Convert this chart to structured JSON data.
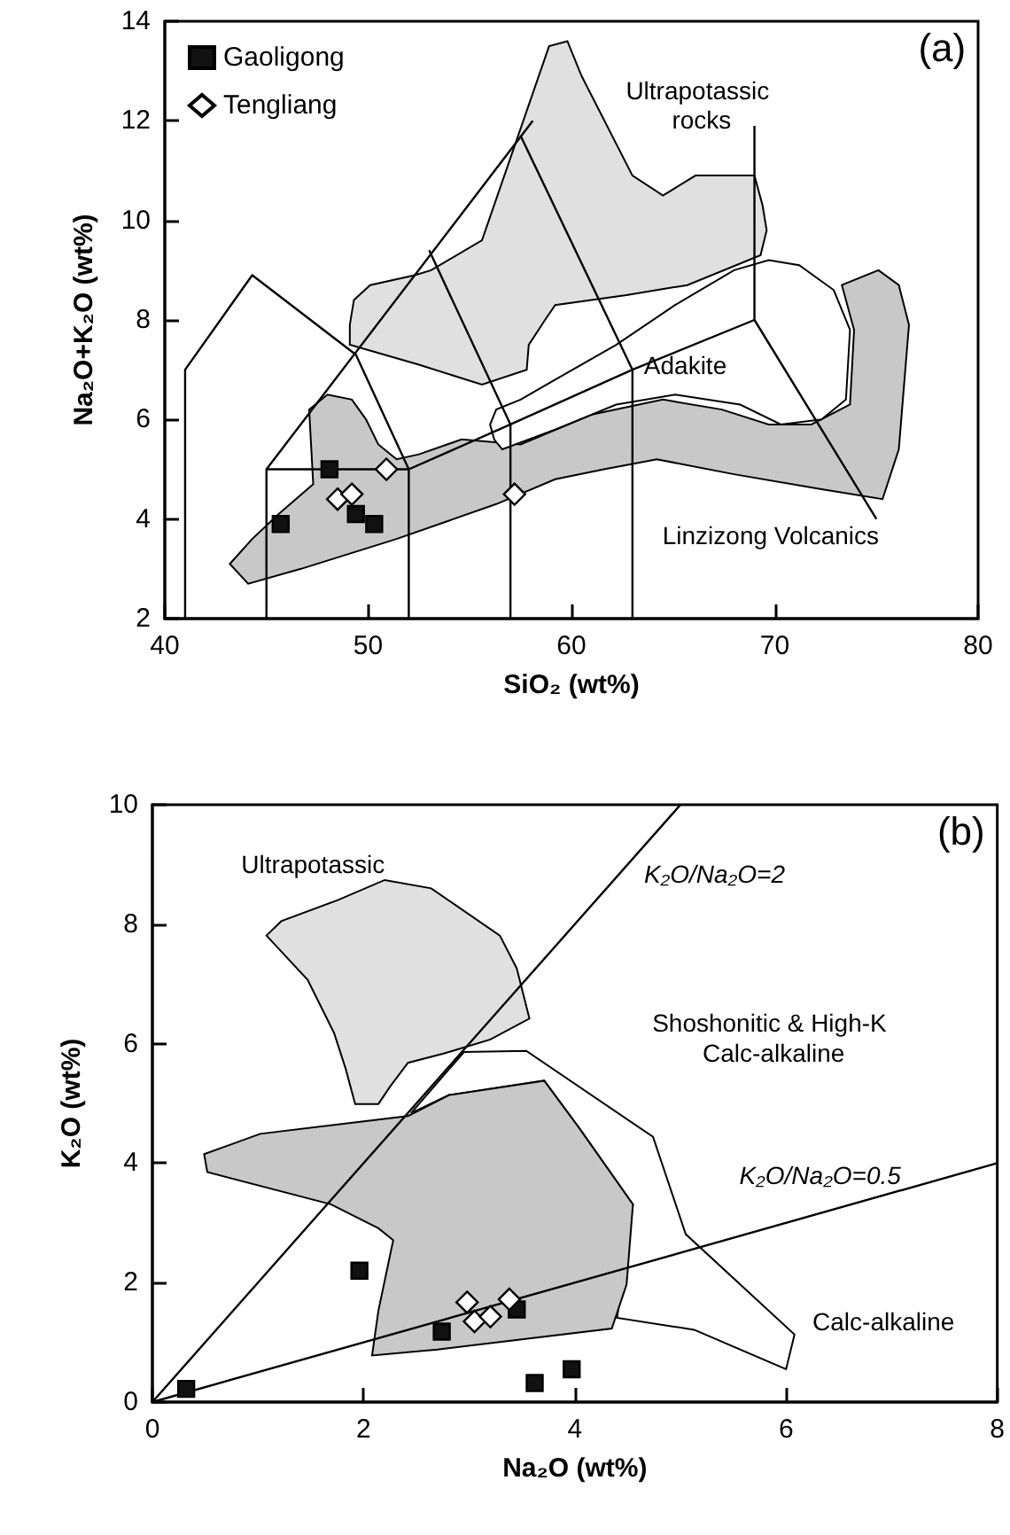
{
  "chart_data": [
    {
      "type": "scatter",
      "xlabel": "SiO₂ (wt%)",
      "ylabel": "Na₂O+K₂O (wt%)",
      "xlim": [
        40,
        80
      ],
      "xticks": [
        40,
        50,
        60,
        70,
        80
      ],
      "ylim": [
        2,
        14
      ],
      "yticks": [
        2,
        4,
        6,
        8,
        10,
        12,
        14
      ],
      "legend": "top left",
      "annotations": [
        "(a)",
        "Ultrapotassic",
        "rocks",
        "Adakite",
        "Linzizong Volcanics"
      ],
      "series": [
        {
          "type": "area",
          "color": "#c8c8c8",
          "x": [
            43.2,
            44.3,
            45.6,
            47.3,
            47.1,
            48.0,
            49.2,
            49.9,
            50.5,
            51.4,
            52.5,
            54.6,
            57.5,
            61.0,
            64.5,
            67.4,
            69.7,
            71.8,
            73.7,
            73.9,
            73.3,
            75.1,
            76.1,
            76.6,
            76.1,
            75.3,
            72.3,
            68.0,
            64.2,
            61.6,
            59.2,
            56.3,
            51.4,
            46.7,
            44.1
          ],
          "values": [
            3.1,
            3.6,
            4.1,
            4.7,
            6.2,
            6.5,
            6.4,
            6.0,
            5.5,
            5.2,
            5.3,
            5.6,
            5.5,
            6.1,
            6.4,
            6.2,
            5.9,
            5.9,
            6.3,
            7.8,
            8.7,
            9.0,
            8.7,
            7.9,
            5.4,
            4.4,
            4.6,
            4.9,
            5.2,
            5.0,
            4.8,
            4.3,
            3.6,
            3.0,
            2.7
          ]
        },
        {
          "type": "area",
          "color": "#e0e0e0",
          "x": [
            49.1,
            49.3,
            50.1,
            52.3,
            53.1,
            55.6,
            58.9,
            59.8,
            60.5,
            63.0,
            64.5,
            66.1,
            69.0,
            69.4,
            69.6,
            69.3,
            65.7,
            62.7,
            59.2,
            58.7,
            57.9,
            57.8,
            55.6,
            52.5,
            49.1
          ],
          "values": [
            7.9,
            8.4,
            8.7,
            8.9,
            9.0,
            9.6,
            13.5,
            13.6,
            12.9,
            10.9,
            10.5,
            10.9,
            10.9,
            10.3,
            9.8,
            9.3,
            8.7,
            8.5,
            8.3,
            8.0,
            7.5,
            7.0,
            6.7,
            7.1,
            7.5
          ]
        },
        {
          "type": "area",
          "color": "#ffffff",
          "x": [
            56.0,
            56.3,
            57.5,
            59.2,
            62.2,
            65.1,
            68.0,
            69.7,
            71.2,
            72.9,
            73.7,
            73.5,
            72.3,
            70.3,
            68.3,
            65.1,
            62.2,
            59.2,
            56.6,
            56.2
          ],
          "values": [
            5.9,
            6.2,
            6.4,
            6.8,
            7.5,
            8.3,
            9.0,
            9.2,
            9.1,
            8.6,
            7.8,
            6.4,
            6.0,
            5.9,
            6.3,
            6.5,
            6.3,
            5.8,
            5.4,
            5.6
          ]
        },
        {
          "type": "line",
          "color": "#000000",
          "x": [
            41,
            41,
            44.3,
            49.4,
            52,
            52
          ],
          "values": [
            2,
            7,
            8.9,
            7.3,
            5,
            2
          ]
        },
        {
          "type": "line",
          "color": "#000000",
          "x": [
            45,
            45,
            52,
            57,
            63,
            69
          ],
          "values": [
            2,
            5,
            5,
            5.9,
            7,
            8
          ]
        },
        {
          "type": "line",
          "color": "#000000",
          "x": [
            45,
            58.1
          ],
          "values": [
            5,
            12
          ]
        },
        {
          "type": "line",
          "color": "#000000",
          "x": [
            53,
            57,
            57
          ],
          "values": [
            9.4,
            5.9,
            2
          ]
        },
        {
          "type": "line",
          "color": "#000000",
          "x": [
            57.5,
            63,
            63
          ],
          "values": [
            11.7,
            7,
            2
          ]
        },
        {
          "type": "line",
          "color": "#000000",
          "x": [
            69,
            69,
            75
          ],
          "values": [
            11.9,
            8,
            4
          ]
        },
        {
          "name": "Gaoligong",
          "color": "#111111",
          "marker": "square",
          "x": [
            45.7,
            48.1,
            49.4,
            50.3
          ],
          "values": [
            3.9,
            5.0,
            4.1,
            3.9
          ]
        },
        {
          "name": "Tengliang",
          "color": "#ffffff",
          "marker": "diamond",
          "x": [
            50.9,
            48.5,
            49.2,
            57.2
          ],
          "values": [
            5.0,
            4.4,
            4.5,
            4.5
          ]
        }
      ]
    },
    {
      "type": "scatter",
      "xlabel": "Na₂O (wt%)",
      "ylabel": "K₂O (wt%)",
      "xlim": [
        0,
        8
      ],
      "xticks": [
        0,
        2,
        4,
        6,
        8
      ],
      "ylim": [
        0,
        10
      ],
      "yticks": [
        0,
        2,
        4,
        6,
        8,
        10
      ],
      "annotations": [
        "(b)",
        "Ultrapotassic",
        "K₂O/Na₂O=2",
        "Shoshonitic & High-K",
        "Calc-alkaline",
        "K₂O/Na₂O=0.5",
        "Calc-alkaline"
      ],
      "series": [
        {
          "type": "area",
          "color": "#ffffff",
          "x": [
            2.45,
            2.95,
            3.54,
            4.74,
            5.05,
            6.08,
            6.0,
            5.13,
            4.4,
            4.55,
            4.04,
            3.71,
            2.81
          ],
          "values": [
            4.84,
            5.86,
            5.88,
            4.44,
            2.81,
            1.13,
            0.55,
            1.21,
            1.41,
            3.31,
            4.59,
            5.38,
            5.14
          ]
        },
        {
          "type": "area",
          "color": "#c8c8c8",
          "x": [
            0.49,
            1.02,
            2.42,
            2.81,
            3.71,
            4.04,
            4.55,
            4.49,
            4.35,
            2.7,
            2.08,
            2.14,
            2.28,
            2.14,
            1.69,
            0.52
          ],
          "values": [
            4.15,
            4.49,
            4.79,
            5.14,
            5.38,
            4.59,
            3.31,
            1.97,
            1.23,
            0.88,
            0.78,
            1.53,
            2.71,
            2.91,
            3.31,
            3.85
          ]
        },
        {
          "type": "area",
          "color": "#e0e0e0",
          "x": [
            1.08,
            1.22,
            1.75,
            2.2,
            2.64,
            3.29,
            3.45,
            3.57,
            3.2,
            2.75,
            2.42,
            2.25,
            2.14,
            1.92,
            1.83,
            1.72,
            1.47
          ],
          "values": [
            7.81,
            8.05,
            8.4,
            8.74,
            8.6,
            7.81,
            7.26,
            6.42,
            6.07,
            5.83,
            5.68,
            5.28,
            4.99,
            4.99,
            5.58,
            6.18,
            7.07
          ]
        },
        {
          "type": "line",
          "color": "#000000",
          "x": [
            0,
            5
          ],
          "values": [
            0,
            10
          ]
        },
        {
          "type": "line",
          "color": "#000000",
          "x": [
            0,
            8
          ],
          "values": [
            0,
            4
          ]
        },
        {
          "color": "#111111",
          "marker": "square",
          "x": [
            1.96,
            2.74,
            3.45,
            3.62,
            3.97,
            0.32
          ],
          "values": [
            2.2,
            1.18,
            1.55,
            0.32,
            0.55,
            0.22
          ]
        },
        {
          "color": "#ffffff",
          "marker": "diamond",
          "x": [
            2.98,
            3.05,
            3.2,
            3.38
          ],
          "values": [
            1.67,
            1.35,
            1.43,
            1.72
          ]
        }
      ]
    }
  ]
}
